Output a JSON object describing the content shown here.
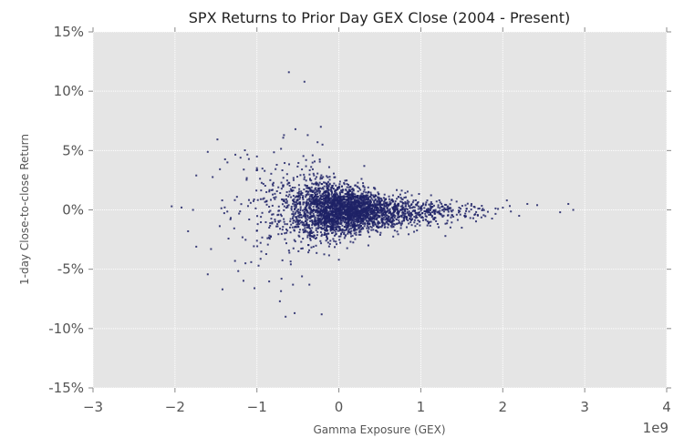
{
  "chart_data": {
    "type": "scatter",
    "title": "SPX Returns to Prior Day GEX Close (2004 - Present)",
    "xlabel": "Gamma Exposure (GEX)",
    "ylabel": "1-day Close-to-close Return",
    "x_offset_label": "1e9",
    "xlim": [
      -3,
      4
    ],
    "ylim": [
      -15,
      15
    ],
    "x_ticks": [
      -3,
      -2,
      -1,
      0,
      1,
      2,
      3,
      4
    ],
    "x_tick_labels": [
      "−3",
      "−2",
      "−1",
      "0",
      "1",
      "2",
      "3",
      "4"
    ],
    "y_ticks": [
      15,
      10,
      5,
      0,
      -5,
      -10,
      -15
    ],
    "y_tick_labels": [
      "15%",
      "10%",
      "5%",
      "0%",
      "-5%",
      "-10%",
      "-15%"
    ],
    "grid": true,
    "legend": null,
    "marker_color": "#1f2266",
    "background_color": "#e5e5e5",
    "notable_points": [
      {
        "x": -0.61,
        "y": 11.6
      },
      {
        "x": -0.42,
        "y": 10.8
      },
      {
        "x": -0.22,
        "y": 7.0
      },
      {
        "x": -0.53,
        "y": 6.8
      },
      {
        "x": -0.38,
        "y": 6.3
      },
      {
        "x": -0.67,
        "y": 6.3
      },
      {
        "x": -0.26,
        "y": 5.7
      },
      {
        "x": -0.2,
        "y": 5.5
      },
      {
        "x": -0.32,
        "y": 4.6
      },
      {
        "x": -1.0,
        "y": 4.5
      },
      {
        "x": -1.2,
        "y": 4.4
      },
      {
        "x": -0.4,
        "y": 4.2
      },
      {
        "x": 0.31,
        "y": 3.7
      },
      {
        "x": -1.74,
        "y": 2.9
      },
      {
        "x": -1.36,
        "y": 4.0
      },
      {
        "x": -0.65,
        "y": -9.0
      },
      {
        "x": -0.54,
        "y": -8.7
      },
      {
        "x": -0.21,
        "y": -8.8
      },
      {
        "x": -0.72,
        "y": -7.7
      },
      {
        "x": -1.03,
        "y": -6.6
      },
      {
        "x": -0.56,
        "y": -6.3
      },
      {
        "x": -0.7,
        "y": -5.8
      },
      {
        "x": -0.45,
        "y": -5.6
      },
      {
        "x": -0.36,
        "y": -6.3
      },
      {
        "x": -1.14,
        "y": -4.5
      },
      {
        "x": -0.98,
        "y": -4.7
      },
      {
        "x": 0.0,
        "y": -4.2
      },
      {
        "x": -1.74,
        "y": -3.1
      },
      {
        "x": -1.84,
        "y": -1.8
      },
      {
        "x": -1.56,
        "y": -3.3
      },
      {
        "x": -2.04,
        "y": 0.3
      },
      {
        "x": -1.92,
        "y": 0.2
      },
      {
        "x": -1.78,
        "y": 0.0
      },
      {
        "x": 2.86,
        "y": 0.0
      },
      {
        "x": 2.8,
        "y": 0.5
      },
      {
        "x": 2.7,
        "y": -0.2
      },
      {
        "x": 2.42,
        "y": 0.4
      },
      {
        "x": 2.3,
        "y": 0.5
      },
      {
        "x": 2.2,
        "y": -0.5
      },
      {
        "x": 2.05,
        "y": 0.8
      },
      {
        "x": 1.5,
        "y": -1.5
      },
      {
        "x": 1.3,
        "y": -2.2
      }
    ],
    "dense_cloud": {
      "count": 3200,
      "center_x": 0.0,
      "description": "Dense cluster centered near GEX 0, return 0%; return dispersion widens for negative GEX and narrows as GEX grows positive",
      "x_range": [
        -1.6,
        2.6
      ],
      "seed": 7
    }
  }
}
